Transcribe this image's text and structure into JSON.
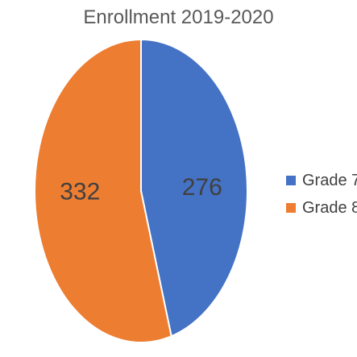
{
  "chart_data": {
    "type": "pie",
    "title": "Enrollment 2019-2020",
    "categories": [
      "Grade 7",
      "Grade 8"
    ],
    "values": [
      276,
      332
    ],
    "colors": [
      "#4472C4",
      "#ED7D31"
    ],
    "data_labels": [
      "276",
      "332"
    ],
    "legend_placement": "right",
    "grid": false
  }
}
